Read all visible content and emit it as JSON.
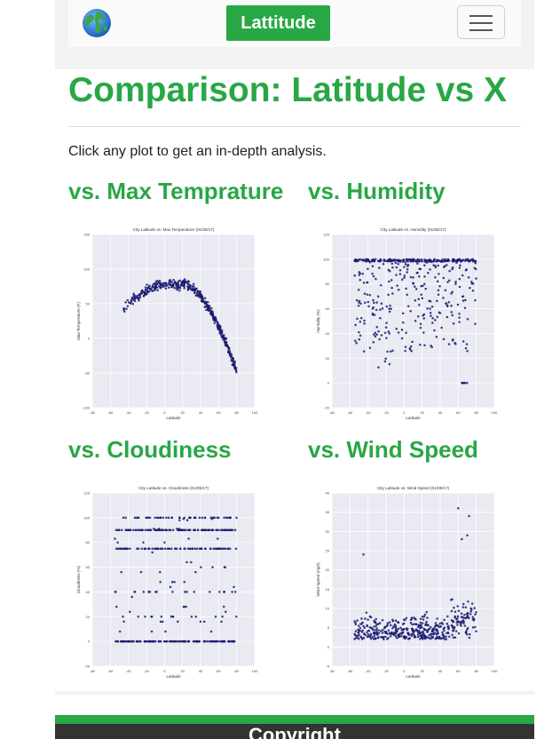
{
  "navbar": {
    "brand_label": "Lattitude",
    "logo_icon": "globe-icon",
    "menu_icon": "hamburger-menu-icon",
    "brand_color": "#28a745"
  },
  "page": {
    "title": "Comparison: Latitude vs X",
    "intro": "Click any plot to get an in-depth analysis."
  },
  "plots": [
    {
      "heading": "vs. Max Temprature",
      "chart_title": "City Latitude vs. Max Temperature (01/05/17)",
      "xlabel": "Latitude",
      "ylabel": "Max Temperature (F)"
    },
    {
      "heading": "vs. Humidity",
      "chart_title": "City Latitude vs. Humidity (01/05/17)",
      "xlabel": "Latitude",
      "ylabel": "Humidity (%)"
    },
    {
      "heading": "vs. Cloudiness",
      "chart_title": "City Latitude vs. Cloudiness (01/05/17)",
      "xlabel": "Latitude",
      "ylabel": "Cloudiness (%)"
    },
    {
      "heading": "vs. Wind Speed",
      "chart_title": "City Latitude vs. Wind Speed (01/05/17)",
      "xlabel": "Latitude",
      "ylabel": "Wind Speed (mph)"
    }
  ],
  "chart_data": [
    {
      "type": "scatter",
      "title": "City Latitude vs. Max Temperature (01/05/17)",
      "xlabel": "Latitude",
      "ylabel": "Max Temperature (F)",
      "xlim": [
        -80,
        100
      ],
      "ylim": [
        -100,
        150
      ],
      "xticks": [
        "-80",
        "-60",
        "-40",
        "-20",
        "0",
        "20",
        "40",
        "60",
        "80",
        "100"
      ],
      "yticks": [
        "150",
        "100",
        "50",
        "0",
        "-50",
        "-100"
      ],
      "shape": "arc",
      "marker_color": "#1a1a6e",
      "grid": true
    },
    {
      "type": "scatter",
      "title": "City Latitude vs. Humidity (01/05/17)",
      "xlabel": "Latitude",
      "ylabel": "Humidity (%)",
      "xlim": [
        -80,
        100
      ],
      "ylim": [
        -20,
        120
      ],
      "xticks": [
        "-80",
        "-60",
        "-40",
        "-20",
        "0",
        "20",
        "40",
        "60",
        "80",
        "100"
      ],
      "yticks": [
        "120",
        "100",
        "80",
        "60",
        "40",
        "20",
        "0",
        "-20"
      ],
      "shape": "humidity",
      "marker_color": "#1a1a6e",
      "grid": true
    },
    {
      "type": "scatter",
      "title": "City Latitude vs. Cloudiness (01/05/17)",
      "xlabel": "Latitude",
      "ylabel": "Cloudiness (%)",
      "xlim": [
        -80,
        100
      ],
      "ylim": [
        -20,
        120
      ],
      "xticks": [
        "-80",
        "-60",
        "-40",
        "-20",
        "0",
        "20",
        "40",
        "60",
        "80",
        "100"
      ],
      "yticks": [
        "120",
        "100",
        "80",
        "60",
        "40",
        "20",
        "0",
        "-20"
      ],
      "shape": "bands",
      "marker_color": "#1a1a6e",
      "grid": true
    },
    {
      "type": "scatter",
      "title": "City Latitude vs. Wind Speed (01/05/17)",
      "xlabel": "Latitude",
      "ylabel": "Wind Speed (mph)",
      "xlim": [
        -80,
        100
      ],
      "ylim": [
        -5,
        40
      ],
      "xticks": [
        "-80",
        "-60",
        "-40",
        "-20",
        "0",
        "20",
        "40",
        "60",
        "80",
        "100"
      ],
      "yticks": [
        "40",
        "35",
        "30",
        "25",
        "20",
        "15",
        "10",
        "5",
        "0",
        "-5"
      ],
      "shape": "wind",
      "marker_color": "#1a1a6e",
      "grid": true
    }
  ],
  "footer": {
    "label": "Copyright"
  }
}
